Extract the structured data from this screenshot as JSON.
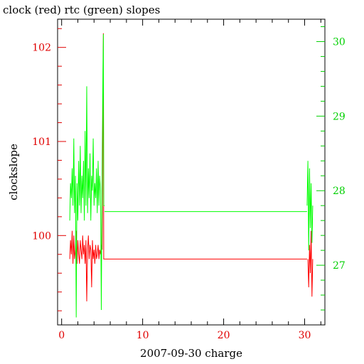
{
  "colors": {
    "clock": "#ff0000",
    "rtc": "#00ff00",
    "left_axis": "#e00000",
    "right_axis": "#00d000",
    "frame": "#000000"
  },
  "chart_data": {
    "type": "line",
    "title": "clock (red) rtc (green) slopes",
    "xlabel": "2007-09-30 charge",
    "ylabel": "clockslope",
    "xlim": [
      -0.5,
      32.5
    ],
    "ylim_left": [
      99.05,
      102.3
    ],
    "ylim_right": [
      26.2,
      30.3
    ],
    "x_ticks": [
      {
        "v": 0,
        "label": "0"
      },
      {
        "v": 10,
        "label": "10"
      },
      {
        "v": 20,
        "label": "20"
      },
      {
        "v": 30,
        "label": "30"
      }
    ],
    "y_ticks_left": [
      {
        "v": 100,
        "label": "100"
      },
      {
        "v": 101,
        "label": "101"
      },
      {
        "v": 102,
        "label": "102"
      }
    ],
    "y_ticks_right": [
      {
        "v": 27,
        "label": "27"
      },
      {
        "v": 28,
        "label": "28"
      },
      {
        "v": 29,
        "label": "29"
      },
      {
        "v": 30,
        "label": "30"
      }
    ],
    "grid": false,
    "series": [
      {
        "name": "clock",
        "axis": "left",
        "color": "#ff0000",
        "x": [
          1.0,
          1.1,
          1.2,
          1.3,
          1.4,
          1.5,
          1.6,
          1.7,
          1.8,
          1.9,
          2.0,
          2.1,
          2.2,
          2.3,
          2.4,
          2.5,
          2.6,
          2.7,
          2.8,
          2.9,
          3.0,
          3.1,
          3.2,
          3.3,
          3.4,
          3.5,
          3.6,
          3.7,
          3.8,
          3.9,
          4.0,
          4.1,
          4.2,
          4.3,
          4.4,
          4.5,
          4.6,
          4.7,
          4.8,
          4.9,
          5.0,
          5.05,
          5.1,
          5.15,
          5.2,
          5.3,
          30.4,
          30.5,
          30.6,
          30.7,
          30.8,
          30.9,
          31.0
        ],
        "y": [
          99.75,
          99.95,
          99.8,
          100.05,
          99.7,
          100.0,
          99.75,
          99.85,
          100.05,
          99.7,
          99.95,
          99.8,
          99.7,
          99.95,
          99.85,
          99.75,
          100.0,
          99.8,
          99.9,
          99.7,
          99.95,
          99.3,
          99.85,
          100.0,
          99.75,
          99.9,
          99.85,
          99.45,
          99.95,
          99.75,
          99.85,
          99.7,
          99.9,
          99.75,
          99.8,
          99.9,
          99.75,
          99.85,
          99.8,
          99.9,
          99.85,
          100.6,
          101.3,
          102.15,
          99.75,
          99.75,
          99.75,
          99.45,
          99.9,
          99.6,
          100.05,
          99.35,
          99.75
        ],
        "flat_segment": {
          "x": [
            5.3,
            30.3
          ],
          "y": 99.75
        }
      },
      {
        "name": "rtc",
        "axis": "right",
        "color": "#00ff00",
        "x": [
          1.0,
          1.1,
          1.2,
          1.3,
          1.4,
          1.5,
          1.6,
          1.7,
          1.8,
          1.9,
          2.0,
          2.1,
          2.2,
          2.3,
          2.4,
          2.5,
          2.6,
          2.7,
          2.8,
          2.9,
          3.0,
          3.1,
          3.2,
          3.3,
          3.4,
          3.5,
          3.6,
          3.7,
          3.8,
          3.9,
          4.0,
          4.1,
          4.2,
          4.3,
          4.4,
          4.5,
          4.6,
          4.7,
          4.8,
          4.9,
          5.0,
          5.05,
          5.1,
          5.15,
          5.2,
          5.3,
          30.3,
          30.4,
          30.5,
          30.6,
          30.7,
          30.8,
          30.9,
          31.0
        ],
        "y": [
          27.6,
          28.1,
          27.9,
          28.3,
          27.8,
          28.7,
          27.7,
          28.2,
          26.3,
          28.1,
          27.6,
          28.4,
          27.8,
          28.6,
          27.7,
          28.2,
          27.9,
          28.4,
          27.6,
          28.8,
          27.8,
          29.4,
          27.7,
          28.3,
          27.9,
          28.5,
          27.6,
          28.2,
          28.0,
          28.7,
          27.8,
          28.1,
          27.9,
          28.3,
          27.7,
          28.4,
          27.8,
          28.2,
          28.0,
          26.4,
          28.3,
          28.9,
          29.6,
          30.1,
          27.8,
          27.8,
          27.8,
          28.4,
          27.2,
          28.3,
          27.5,
          28.1,
          27.3,
          27.8
        ],
        "flat_segment": {
          "x": [
            5.3,
            30.3
          ],
          "y": 27.72
        }
      }
    ]
  }
}
